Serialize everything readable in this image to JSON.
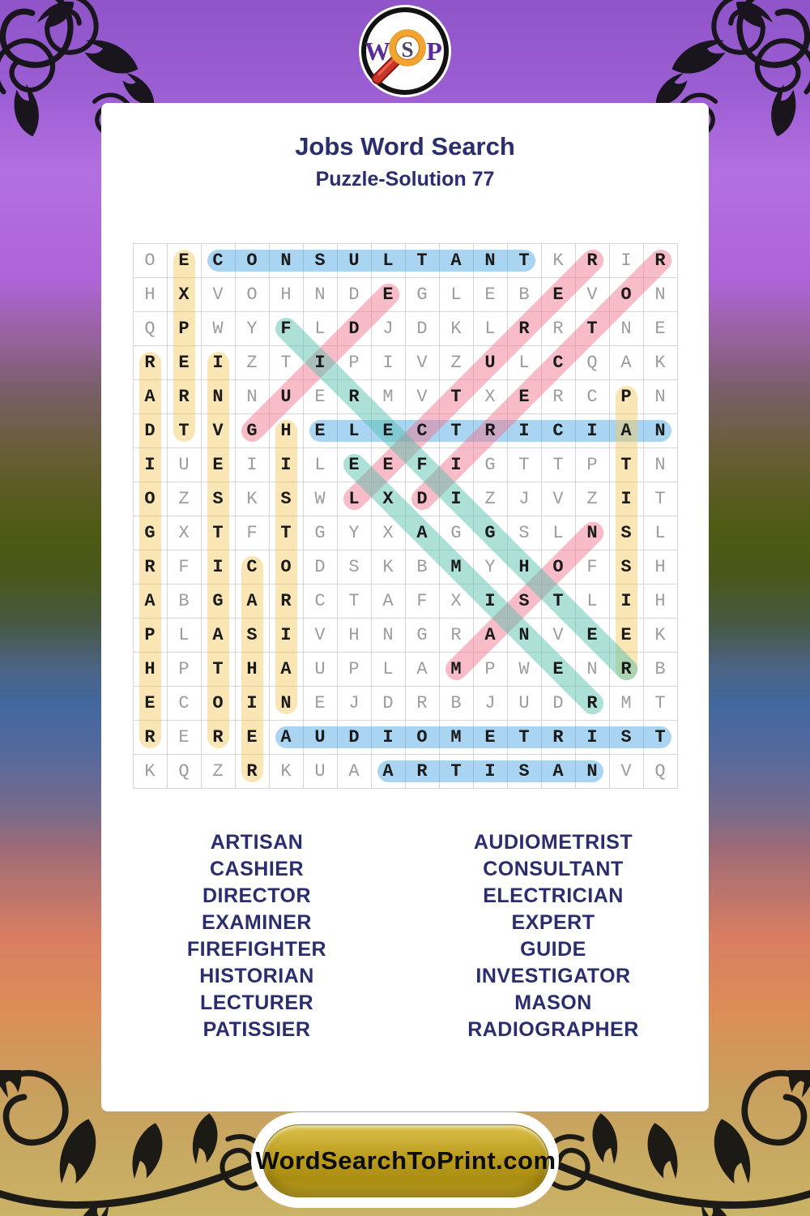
{
  "header": {
    "title": "Jobs Word Search",
    "subtitle": "Puzzle-Solution 77"
  },
  "logo": {
    "letters": [
      "W",
      "S",
      "P"
    ]
  },
  "puzzle": {
    "rows": 16,
    "cols": 16,
    "grid": [
      "OECONSULTANTKRIR",
      "HXVOHNDEGLEBEVON",
      "QPWYFLDJDKLRRTNE",
      "REIZTIPIVZULCQAK",
      "ARNNUERMVTXERCPN",
      "DTVGHELECTRICIAN",
      "IUEIILEEFIGTTPTN",
      "OZSKSWLXDIZJVZIT",
      "GXTFTGYXAGGSLNSL",
      "RFICODSKBMYHOFSH",
      "ABGARCTAFXISTLIH",
      "PLASIVHNGRANVEEK",
      "HPTHAUPLAMPWENRB",
      "ECOINEJDRBJUDRMT",
      "REREAUDIOMETRIST",
      "KQZRKUAARTISANVQ"
    ],
    "solutions": [
      {
        "word": "CONSULTANT",
        "row": 1,
        "col": 3,
        "dir": "H",
        "color": "blue"
      },
      {
        "word": "ELECTRICIAN",
        "row": 6,
        "col": 6,
        "dir": "H",
        "color": "blue"
      },
      {
        "word": "AUDIOMETRIST",
        "row": 15,
        "col": 5,
        "dir": "H",
        "color": "blue"
      },
      {
        "word": "ARTISAN",
        "row": 16,
        "col": 8,
        "dir": "H",
        "color": "blue"
      },
      {
        "word": "EXPERT",
        "row": 1,
        "col": 2,
        "dir": "V",
        "color": "yellow"
      },
      {
        "word": "RADIOGRAPHER",
        "row": 4,
        "col": 1,
        "dir": "V",
        "color": "yellow"
      },
      {
        "word": "INVESTIGATOR",
        "row": 4,
        "col": 3,
        "dir": "V",
        "color": "yellow"
      },
      {
        "word": "HISTORIAN",
        "row": 6,
        "col": 5,
        "dir": "V",
        "color": "yellow"
      },
      {
        "word": "CASHIER",
        "row": 10,
        "col": 4,
        "dir": "V",
        "color": "yellow"
      },
      {
        "word": "PATISSIER",
        "row": 5,
        "col": 15,
        "dir": "V",
        "color": "yellow"
      },
      {
        "word": "GUIDE",
        "row": 6,
        "col": 4,
        "dir": "DU",
        "color": "pink"
      },
      {
        "word": "LECTURER",
        "row": 8,
        "col": 7,
        "dir": "DU",
        "color": "pink"
      },
      {
        "word": "DIRECTOR",
        "row": 8,
        "col": 9,
        "dir": "DU",
        "color": "pink"
      },
      {
        "word": "MASON",
        "row": 13,
        "col": 10,
        "dir": "DU",
        "color": "pink"
      },
      {
        "word": "FIREFIGHTER",
        "row": 3,
        "col": 5,
        "dir": "DD",
        "color": "teal"
      },
      {
        "word": "EXAMINER",
        "row": 7,
        "col": 7,
        "dir": "DD",
        "color": "teal"
      }
    ],
    "highlight_colors": {
      "blue": "rgba(64,162,228,0.45)",
      "yellow": "rgba(244,199,88,0.45)",
      "pink": "rgba(239,115,139,0.48)",
      "teal": "rgba(84,191,171,0.48)"
    },
    "letter_solution_color": "#1a1a1a",
    "letter_filler_color": "#9c9c9c"
  },
  "word_list": {
    "left": [
      "ARTISAN",
      "CASHIER",
      "DIRECTOR",
      "EXAMINER",
      "FIREFIGHTER",
      "HISTORIAN",
      "LECTURER",
      "PATISSIER"
    ],
    "right": [
      "AUDIOMETRIST",
      "CONSULTANT",
      "ELECTRICIAN",
      "EXPERT",
      "GUIDE",
      "INVESTIGATOR",
      "MASON",
      "RADIOGRAPHER"
    ]
  },
  "footer": {
    "site_label": "WordSearchToPrint.com"
  },
  "theme": {
    "title_color": "#2b2e6e",
    "button_gold": "#b89a1c",
    "logo_letter_color": "#5b2d9a",
    "logo_ring_orange": "#f2a431",
    "logo_handle_red": "#b8281c"
  }
}
